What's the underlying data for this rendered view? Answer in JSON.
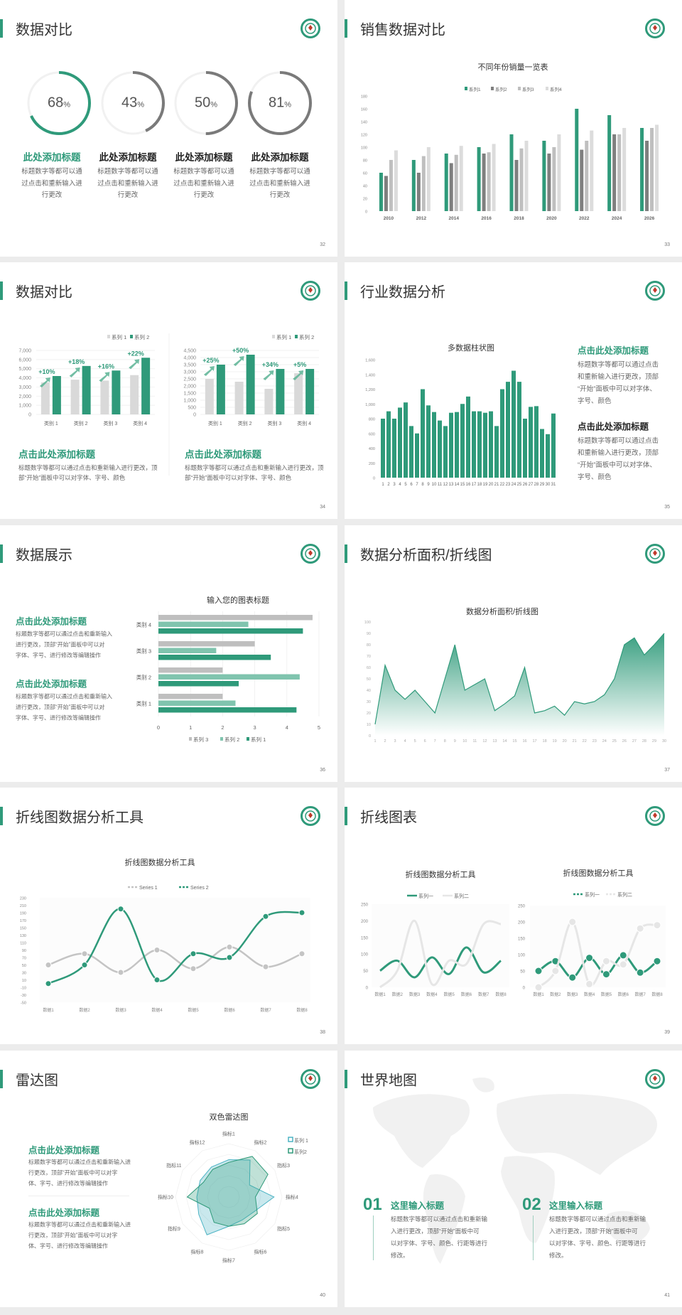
{
  "theme": {
    "accent": "#2f9a7a",
    "gray": "#7f7f7f",
    "light_gray": "#bfbfbf",
    "lighter_gray": "#dcdcdc",
    "background": "#ececec",
    "logo_icon": "circular-green-emblem-icon"
  },
  "slides": [
    {
      "title": "数据对比",
      "page": "32",
      "items": [
        {
          "value": "68",
          "unit": "%",
          "title": "此处添加标题",
          "desc": [
            "标题数字等都可以通",
            "过点击和重新输入进",
            "行更改"
          ]
        },
        {
          "value": "43",
          "unit": "%",
          "title": "此处添加标题",
          "desc": [
            "标题数字等都可以通",
            "过点击和重新输入进",
            "行更改"
          ]
        },
        {
          "value": "50",
          "unit": "%",
          "title": "此处添加标题",
          "desc": [
            "标题数字等都可以通",
            "过点击和重新输入进",
            "行更改"
          ]
        },
        {
          "value": "81",
          "unit": "%",
          "title": "此处添加标题",
          "desc": [
            "标题数字等都可以通",
            "过点击和重新输入进",
            "行更改"
          ]
        }
      ]
    },
    {
      "title": "销售数据对比",
      "page": "33"
    },
    {
      "title": "数据对比",
      "page": "34",
      "blocks": [
        {
          "title": "点击此处添加标题",
          "desc": [
            "标题数字等都可以通过点击和重新输入进行更改，顶",
            "部“开始”面板中可以对字体、字号、颜色"
          ]
        },
        {
          "title": "点击此处添加标题",
          "desc": [
            "标题数字等都可以通过点击和重新输入进行更改，顶",
            "部“开始”面板中可以对字体、字号、颜色"
          ]
        }
      ]
    },
    {
      "title": "行业数据分析",
      "page": "35",
      "blocks": [
        {
          "title": "点击此处添加标题",
          "desc": [
            "标题数字等都可以通过点击",
            "和重新输入进行更改，顶部",
            "“开始”面板中可以对字体、",
            "字号、颜色"
          ]
        },
        {
          "title": "点击此处添加标题",
          "desc": [
            "标题数字等都可以通过点击",
            "和重新输入进行更改，顶部",
            "“开始”面板中可以对字体、",
            "字号、颜色"
          ]
        }
      ]
    },
    {
      "title": "数据展示",
      "page": "36",
      "blocks": [
        {
          "title": "点击此处添加标题",
          "desc": [
            "标题数字等都可以通过点击和重新输入",
            "进行更改，顶部“开始”面板中可以对",
            "字体、字号、进行修改等编辑操作"
          ]
        },
        {
          "title": "点击此处添加标题",
          "desc": [
            "标题数字等都可以通过点击和重新输入",
            "进行更改，顶部“开始”面板中可以对",
            "字体、字号、进行修改等编辑操作"
          ]
        }
      ]
    },
    {
      "title": "数据分析面积/折线图",
      "page": "37"
    },
    {
      "title": "折线图数据分析工具",
      "page": "38"
    },
    {
      "title": "折线图表",
      "page": "39"
    },
    {
      "title": "雷达图",
      "page": "40",
      "blocks": [
        {
          "title": "点击此处添加标题",
          "desc": [
            "标题数字等都可以通过点击和重新输入进",
            "行更改，顶部“开始”面板中可以对字",
            "体、字号、进行修改等编辑操作"
          ]
        },
        {
          "title": "点击此处添加标题",
          "desc": [
            "标题数字等都可以通过点击和重新输入进",
            "行更改，顶部“开始”面板中可以对字",
            "体、字号、进行修改等编辑操作"
          ]
        }
      ]
    },
    {
      "title": "世界地图",
      "page": "41",
      "blocks": [
        {
          "num": "01",
          "title": "这里输入标题",
          "desc": [
            "标题数字等都可以通过点击和重新输",
            "入进行更改，顶部“开始”面板中可",
            "以对字体、字号、颜色、行距等进行",
            "修改。"
          ]
        },
        {
          "num": "02",
          "title": "这里输入标题",
          "desc": [
            "标题数字等都可以通过点击和重新输",
            "入进行更改，顶部“开始”面板中可",
            "以对字体、字号、颜色、行距等进行",
            "修改。"
          ]
        }
      ]
    }
  ],
  "chart_data": [
    {
      "type": "bar",
      "title": "不同年份销量一览表",
      "categories": [
        "2010",
        "2012",
        "2014",
        "2016",
        "2018",
        "2020",
        "2022",
        "2024",
        "2026"
      ],
      "series": [
        {
          "name": "系列1",
          "color": "#2f9a7a",
          "values": [
            60,
            80,
            90,
            100,
            120,
            110,
            160,
            150,
            130
          ]
        },
        {
          "name": "系列2",
          "color": "#7f7f7f",
          "values": [
            55,
            60,
            75,
            90,
            80,
            90,
            96,
            120,
            110
          ]
        },
        {
          "name": "系列3",
          "color": "#bfbfbf",
          "values": [
            80,
            86,
            88,
            92,
            98,
            100,
            110,
            120,
            130
          ]
        },
        {
          "name": "系列4",
          "color": "#dcdcdc",
          "values": [
            95,
            100,
            102,
            105,
            110,
            120,
            126,
            130,
            135
          ]
        }
      ],
      "ylim": [
        0,
        180
      ],
      "yticks": [
        "0",
        "20",
        "40",
        "60",
        "80",
        "100",
        "120",
        "140",
        "160",
        "180"
      ],
      "grid": false,
      "legend": "top"
    },
    {
      "type": "bar",
      "categories": [
        "类别 1",
        "类别 2",
        "类别 3",
        "类别 4"
      ],
      "series": [
        {
          "name": "系列 1",
          "color": "#d9d9d9",
          "values": [
            3500,
            3800,
            3700,
            4300
          ]
        },
        {
          "name": "系列 2",
          "color": "#2f9a7a",
          "values": [
            4200,
            5300,
            4800,
            6200
          ]
        }
      ],
      "annotations": [
        "+10%",
        "+18%",
        "+16%",
        "+22%"
      ],
      "ylim": [
        0,
        7000
      ],
      "yticks": [
        "0",
        "1,000",
        "2,000",
        "3,000",
        "4,000",
        "5,000",
        "6,000",
        "7,000"
      ],
      "grid": true,
      "legend": "top-right"
    },
    {
      "type": "bar",
      "categories": [
        "类别 1",
        "类别 2",
        "类别 3",
        "类别 4"
      ],
      "series": [
        {
          "name": "系列 1",
          "color": "#d9d9d9",
          "values": [
            2500,
            2300,
            1800,
            2900
          ]
        },
        {
          "name": "系列 2",
          "color": "#2f9a7a",
          "values": [
            3500,
            4200,
            3200,
            3200
          ]
        }
      ],
      "annotations": [
        "+25%",
        "+50%",
        "+34%",
        "+5%"
      ],
      "ylim": [
        0,
        4500
      ],
      "yticks": [
        "0",
        "500",
        "1,000",
        "1,500",
        "2,000",
        "2,500",
        "3,000",
        "3,500",
        "4,000",
        "4,500"
      ],
      "grid": true,
      "legend": "top-right"
    },
    {
      "type": "bar",
      "title": "多数据柱状图",
      "categories": [
        "1",
        "2",
        "3",
        "4",
        "5",
        "6",
        "7",
        "8",
        "9",
        "10",
        "11",
        "12",
        "13",
        "14",
        "15",
        "16",
        "17",
        "18",
        "19",
        "20",
        "21",
        "22",
        "23",
        "24",
        "25",
        "26",
        "27",
        "28",
        "29",
        "30",
        "31"
      ],
      "series": [
        {
          "color": "#2f9a7a",
          "values": [
            800,
            900,
            800,
            950,
            1020,
            700,
            600,
            1200,
            980,
            890,
            775,
            700,
            880,
            890,
            1000,
            1100,
            900,
            900,
            880,
            900,
            700,
            1200,
            1300,
            1450,
            1300,
            800,
            960,
            970,
            660,
            590,
            870
          ]
        }
      ],
      "ylim": [
        0,
        1600
      ],
      "yticks": [
        "0",
        "200",
        "400",
        "600",
        "800",
        "1,000",
        "1,200",
        "1,400",
        "1,600"
      ],
      "grid": false
    },
    {
      "type": "bar",
      "orientation": "horizontal",
      "title": "输入您的图表标题",
      "categories": [
        "类别 1",
        "类别 2",
        "类别 3",
        "类别 4"
      ],
      "series": [
        {
          "name": "系列 1",
          "color": "#2f9a7a",
          "values": [
            4.3,
            2.5,
            3.5,
            4.5
          ]
        },
        {
          "name": "系列 2",
          "color": "#80c4ae",
          "values": [
            2.4,
            4.4,
            1.8,
            2.8
          ]
        },
        {
          "name": "系列 3",
          "color": "#bfbfbf",
          "values": [
            2,
            2,
            3,
            4.8
          ]
        }
      ],
      "xlim": [
        0,
        5
      ],
      "xticks": [
        "0",
        "1",
        "2",
        "3",
        "4",
        "5"
      ],
      "grid": true,
      "legend": "bottom"
    },
    {
      "type": "area",
      "title": "数据分析面积/折线图",
      "x": [
        "1",
        "2",
        "3",
        "4",
        "5",
        "6",
        "7",
        "8",
        "9",
        "10",
        "11",
        "12",
        "13",
        "14",
        "15",
        "16",
        "17",
        "18",
        "19",
        "20",
        "21",
        "22",
        "23",
        "24",
        "25",
        "26",
        "27",
        "28",
        "29",
        "30"
      ],
      "values": [
        10,
        62,
        40,
        32,
        40,
        30,
        20,
        50,
        80,
        40,
        45,
        50,
        22,
        28,
        35,
        60,
        20,
        22,
        26,
        18,
        30,
        28,
        30,
        36,
        50,
        80,
        86,
        71,
        80,
        90
      ],
      "color": "#2f9a7a",
      "ylim": [
        0,
        100
      ],
      "yticks": [
        "0",
        "10",
        "20",
        "30",
        "40",
        "50",
        "60",
        "70",
        "80",
        "90",
        "100"
      ],
      "grid": false
    },
    {
      "type": "line",
      "smooth": true,
      "markers": true,
      "title": "折线图数据分析工具",
      "categories": [
        "数据1",
        "数据2",
        "数据3",
        "数据4",
        "数据5",
        "数据6",
        "数据7",
        "数据8"
      ],
      "series": [
        {
          "name": "Series 1",
          "color": "#c4c4c4",
          "values": [
            50,
            80,
            30,
            90,
            40,
            98,
            45,
            80
          ]
        },
        {
          "name": "Series 2",
          "color": "#2f9a7a",
          "values": [
            0,
            50,
            200,
            10,
            80,
            70,
            180,
            190
          ]
        }
      ],
      "ylim": [
        -50,
        230
      ],
      "yticks": [
        "-50",
        "-30",
        "-10",
        "10",
        "30",
        "50",
        "70",
        "90",
        "110",
        "130",
        "150",
        "170",
        "190",
        "210",
        "230"
      ],
      "legend": "top"
    },
    {
      "type": "line",
      "smooth": true,
      "markers": false,
      "title": "折线图数据分析工具",
      "categories": [
        "数据1",
        "数据2",
        "数据3",
        "数据4",
        "数据5",
        "数据6",
        "数据7",
        "数据8"
      ],
      "series": [
        {
          "name": "系列一",
          "color": "#2f9a7a",
          "values": [
            50,
            80,
            30,
            90,
            40,
            120,
            45,
            80
          ]
        },
        {
          "name": "系列二",
          "color": "#e6e6e6",
          "values": [
            0,
            50,
            200,
            10,
            80,
            70,
            190,
            190
          ]
        }
      ],
      "ylim": [
        0,
        250
      ],
      "yticks": [
        "0",
        "50",
        "100",
        "150",
        "200",
        "250"
      ],
      "legend": "top"
    },
    {
      "type": "line",
      "smooth": true,
      "markers": true,
      "title": "折线图数据分析工具",
      "categories": [
        "数据1",
        "数据2",
        "数据3",
        "数据4",
        "数据5",
        "数据6",
        "数据7",
        "数据8"
      ],
      "series": [
        {
          "name": "系列一",
          "color": "#2f9a7a",
          "values": [
            50,
            80,
            30,
            90,
            40,
            98,
            45,
            80
          ]
        },
        {
          "name": "系列二",
          "color": "#e6e6e6",
          "values": [
            0,
            50,
            200,
            10,
            80,
            70,
            180,
            190
          ]
        }
      ],
      "ylim": [
        0,
        250
      ],
      "yticks": [
        "0",
        "50",
        "100",
        "150",
        "200",
        "250"
      ],
      "legend": "top"
    },
    {
      "type": "radar",
      "title": "双色雷达图",
      "categories": [
        "指标1",
        "指标2",
        "指标3",
        "指标4",
        "指标5",
        "指标6",
        "指标7",
        "指标8",
        "指标9",
        "指标10",
        "指标11",
        "指标12"
      ],
      "series": [
        {
          "name": "系列 1",
          "color": "#4bb3c4",
          "values": [
            70,
            80,
            45,
            85,
            55,
            50,
            55,
            82,
            65,
            60,
            62,
            65
          ]
        },
        {
          "name": "系列2",
          "color": "#2f9a7a",
          "values": [
            65,
            88,
            85,
            50,
            62,
            58,
            55,
            55,
            42,
            78,
            55,
            60
          ]
        }
      ],
      "rlim": [
        0,
        100
      ],
      "legend": "top-right"
    }
  ]
}
